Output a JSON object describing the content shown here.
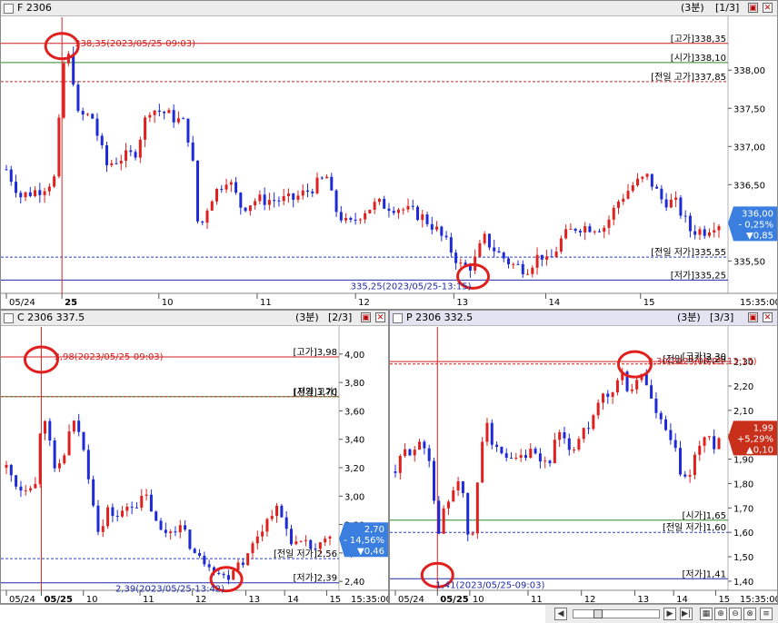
{
  "colors": {
    "up": "#e0201e",
    "down": "#1e2ad8",
    "high": "#d11f1f",
    "open": "#2e8b2e",
    "prevhigh": "#c83030",
    "prevlow": "#2f3fc0",
    "low": "#1e2aa8",
    "badge_up": "#c9301b",
    "badge_down": "#3a7fe0"
  },
  "panels": [
    {
      "id": "f",
      "title": "F 2306",
      "period": "(3분)",
      "index": "[1/3]",
      "chart_data": {
        "type": "candlestick",
        "ylim": [
          335.1,
          338.55
        ],
        "yticks": [
          {
            "v": 338.0,
            "t": "338,00"
          },
          {
            "v": 337.5,
            "t": "337,50"
          },
          {
            "v": 337.0,
            "t": "337,00"
          },
          {
            "v": 336.5,
            "t": "336,50"
          },
          {
            "v": 335.5,
            "t": "335,50"
          }
        ],
        "xticks": [
          {
            "f": 0.0,
            "t": "05/24"
          },
          {
            "f": 0.078,
            "t": "25"
          },
          {
            "f": 0.214,
            "t": "10"
          },
          {
            "f": 0.352,
            "t": "11"
          },
          {
            "f": 0.49,
            "t": "12"
          },
          {
            "f": 0.628,
            "t": "13"
          },
          {
            "f": 0.757,
            "t": "14"
          },
          {
            "f": 0.89,
            "t": "15"
          }
        ],
        "xlast": "15:35:00",
        "open_mark_f": 0.078,
        "anchors": [
          [
            0,
            336.7
          ],
          [
            0.02,
            336.35
          ],
          [
            0.05,
            336.45
          ],
          [
            0.07,
            336.6
          ],
          [
            0.078,
            338.05
          ],
          [
            0.09,
            338.2
          ],
          [
            0.1,
            337.4
          ],
          [
            0.12,
            337.4
          ],
          [
            0.14,
            336.75
          ],
          [
            0.16,
            336.85
          ],
          [
            0.18,
            336.9
          ],
          [
            0.2,
            337.5
          ],
          [
            0.22,
            337.45
          ],
          [
            0.25,
            337.3
          ],
          [
            0.26,
            336.95
          ],
          [
            0.27,
            335.85
          ],
          [
            0.285,
            336.3
          ],
          [
            0.31,
            336.6
          ],
          [
            0.33,
            336.2
          ],
          [
            0.35,
            336.3
          ],
          [
            0.38,
            336.3
          ],
          [
            0.4,
            336.3
          ],
          [
            0.42,
            336.4
          ],
          [
            0.45,
            336.6
          ],
          [
            0.46,
            336.2
          ],
          [
            0.48,
            335.95
          ],
          [
            0.5,
            336.15
          ],
          [
            0.52,
            336.25
          ],
          [
            0.55,
            336.2
          ],
          [
            0.58,
            336.1
          ],
          [
            0.6,
            335.95
          ],
          [
            0.62,
            335.7
          ],
          [
            0.64,
            335.4
          ],
          [
            0.655,
            335.45
          ],
          [
            0.67,
            335.8
          ],
          [
            0.69,
            335.6
          ],
          [
            0.71,
            335.45
          ],
          [
            0.73,
            335.4
          ],
          [
            0.75,
            335.6
          ],
          [
            0.76,
            335.45
          ],
          [
            0.78,
            335.8
          ],
          [
            0.8,
            335.95
          ],
          [
            0.82,
            335.95
          ],
          [
            0.84,
            335.95
          ],
          [
            0.86,
            336.3
          ],
          [
            0.88,
            336.5
          ],
          [
            0.9,
            336.6
          ],
          [
            0.92,
            336.3
          ],
          [
            0.94,
            336.25
          ],
          [
            0.96,
            335.9
          ],
          [
            0.98,
            335.9
          ],
          [
            0.995,
            336.0
          ]
        ],
        "lines": [
          {
            "key": "high",
            "v": 338.35,
            "label": "[고가]338,35",
            "style": "solid"
          },
          {
            "key": "open",
            "v": 338.1,
            "label": "[시가]338,10",
            "style": "solid"
          },
          {
            "key": "prevhigh",
            "v": 337.85,
            "label": "[전일 고가]337,85",
            "style": "dash"
          },
          {
            "key": "prevlow",
            "v": 335.55,
            "label": "[전일 저가]335,55",
            "style": "dash"
          },
          {
            "key": "low",
            "v": 335.25,
            "label": "[저가]335,25",
            "style": "solid"
          }
        ],
        "high_note": {
          "text": "338,35(2023/05/25-09:03)",
          "f": 0.078,
          "v": 338.35
        },
        "low_note": {
          "text": "335,25(2023/05/25-13:15)",
          "f": 0.655,
          "v": 335.25
        },
        "badge": {
          "dir": "down",
          "l1": "336,00",
          "l2": "- 0,25%",
          "l3": "▼0,85",
          "v": 336.0
        }
      }
    },
    {
      "id": "c",
      "title": "C 2306 337.5",
      "period": "(3분)",
      "index": "[2/3]",
      "chart_data": {
        "type": "candlestick",
        "ylim": [
          2.35,
          4.05
        ],
        "yticks": [
          {
            "v": 4.0,
            "t": "4,00"
          },
          {
            "v": 3.8,
            "t": "3,80"
          },
          {
            "v": 3.6,
            "t": "3,60"
          },
          {
            "v": 3.4,
            "t": "3,40"
          },
          {
            "v": 3.2,
            "t": "3,20"
          },
          {
            "v": 3.0,
            "t": "3,00"
          },
          {
            "v": 2.8,
            "t": "2,80"
          },
          {
            "v": 2.6,
            "t": "2,60"
          },
          {
            "v": 2.4,
            "t": "2,40"
          }
        ],
        "xticks": [
          {
            "f": 0.0,
            "t": "05/24"
          },
          {
            "f": 0.108,
            "t": "05/25"
          },
          {
            "f": 0.238,
            "t": "10"
          },
          {
            "f": 0.413,
            "t": "11"
          },
          {
            "f": 0.575,
            "t": "12"
          },
          {
            "f": 0.74,
            "t": "13"
          },
          {
            "f": 0.86,
            "t": "14"
          },
          {
            "f": 0.99,
            "t": "15"
          }
        ],
        "xlast": "15:35:00",
        "open_mark_f": 0.108,
        "anchors": [
          [
            0,
            3.2
          ],
          [
            0.04,
            3.05
          ],
          [
            0.08,
            3.1
          ],
          [
            0.1,
            3.05
          ],
          [
            0.108,
            3.8
          ],
          [
            0.12,
            3.55
          ],
          [
            0.15,
            3.15
          ],
          [
            0.18,
            3.3
          ],
          [
            0.2,
            3.5
          ],
          [
            0.22,
            3.5
          ],
          [
            0.25,
            3.2
          ],
          [
            0.27,
            2.95
          ],
          [
            0.29,
            2.7
          ],
          [
            0.31,
            2.9
          ],
          [
            0.35,
            2.85
          ],
          [
            0.38,
            2.95
          ],
          [
            0.41,
            2.95
          ],
          [
            0.43,
            3.0
          ],
          [
            0.45,
            2.9
          ],
          [
            0.47,
            2.75
          ],
          [
            0.5,
            2.75
          ],
          [
            0.53,
            2.8
          ],
          [
            0.56,
            2.7
          ],
          [
            0.58,
            2.6
          ],
          [
            0.6,
            2.55
          ],
          [
            0.62,
            2.55
          ],
          [
            0.64,
            2.5
          ],
          [
            0.66,
            2.45
          ],
          [
            0.68,
            2.42
          ],
          [
            0.7,
            2.5
          ],
          [
            0.72,
            2.55
          ],
          [
            0.74,
            2.55
          ],
          [
            0.76,
            2.65
          ],
          [
            0.78,
            2.75
          ],
          [
            0.8,
            2.8
          ],
          [
            0.82,
            2.9
          ],
          [
            0.84,
            2.9
          ],
          [
            0.86,
            2.8
          ],
          [
            0.88,
            2.7
          ],
          [
            0.9,
            2.65
          ],
          [
            0.93,
            2.65
          ],
          [
            0.96,
            2.62
          ],
          [
            0.995,
            2.7
          ]
        ],
        "lines": [
          {
            "key": "high",
            "v": 3.98,
            "label": "[고가]3,98",
            "style": "solid"
          },
          {
            "key": "open",
            "v": 3.7,
            "label": "[시가]3,70",
            "style": "solid"
          },
          {
            "key": "prevhigh",
            "v": 3.7,
            "label": "[전일 고가]",
            "style": "dash"
          },
          {
            "key": "prevlow",
            "v": 2.56,
            "label": "[전일 저가]2,56",
            "style": "dash"
          },
          {
            "key": "low",
            "v": 2.39,
            "label": "[저가]2,39",
            "style": "solid"
          }
        ],
        "high_note": {
          "text": "3,98(2023/05/25-09:03)",
          "f": 0.108,
          "v": 3.98
        },
        "low_note": {
          "text": "2,39(2023/05/25-13:42)",
          "f": 0.68,
          "v": 2.39
        },
        "badge": {
          "dir": "down",
          "l1": "2,70",
          "l2": "- 14,56%",
          "l3": "▼0,46",
          "v": 2.7
        }
      }
    },
    {
      "id": "p",
      "title": "P 2306 332.5",
      "period": "(3분)",
      "index": "[3/3]",
      "chart_data": {
        "type": "candlestick",
        "ylim": [
          1.37,
          2.36
        ],
        "yticks": [
          {
            "v": 2.3,
            "t": "2,30"
          },
          {
            "v": 2.2,
            "t": "2,20"
          },
          {
            "v": 2.1,
            "t": "2,10"
          },
          {
            "v": 2.0,
            "t": "2,00"
          },
          {
            "v": 1.9,
            "t": "1,90"
          },
          {
            "v": 1.8,
            "t": "1,80"
          },
          {
            "v": 1.7,
            "t": "1,70"
          },
          {
            "v": 1.6,
            "t": "1,60"
          },
          {
            "v": 1.5,
            "t": "1,50"
          },
          {
            "v": 1.4,
            "t": "1,40"
          }
        ],
        "xticks": [
          {
            "f": 0.0,
            "t": "05/24"
          },
          {
            "f": 0.13,
            "t": "05/25"
          },
          {
            "f": 0.23,
            "t": "10"
          },
          {
            "f": 0.41,
            "t": "11"
          },
          {
            "f": 0.575,
            "t": "12"
          },
          {
            "f": 0.74,
            "t": "13"
          },
          {
            "f": 0.86,
            "t": "14"
          },
          {
            "f": 0.99,
            "t": "15"
          }
        ],
        "xlast": "15:35:00",
        "open_mark_f": 0.13,
        "anchors": [
          [
            0,
            1.85
          ],
          [
            0.03,
            1.93
          ],
          [
            0.06,
            1.95
          ],
          [
            0.09,
            1.95
          ],
          [
            0.11,
            1.9
          ],
          [
            0.13,
            1.55
          ],
          [
            0.15,
            1.7
          ],
          [
            0.17,
            1.75
          ],
          [
            0.2,
            1.85
          ],
          [
            0.22,
            1.6
          ],
          [
            0.24,
            1.58
          ],
          [
            0.26,
            1.9
          ],
          [
            0.28,
            2.1
          ],
          [
            0.3,
            1.95
          ],
          [
            0.33,
            1.9
          ],
          [
            0.36,
            1.88
          ],
          [
            0.39,
            1.9
          ],
          [
            0.42,
            1.92
          ],
          [
            0.45,
            1.88
          ],
          [
            0.48,
            1.9
          ],
          [
            0.5,
            2.0
          ],
          [
            0.53,
            1.95
          ],
          [
            0.56,
            1.95
          ],
          [
            0.58,
            2.05
          ],
          [
            0.6,
            2.0
          ],
          [
            0.62,
            2.1
          ],
          [
            0.64,
            2.15
          ],
          [
            0.66,
            2.15
          ],
          [
            0.68,
            2.2
          ],
          [
            0.7,
            2.25
          ],
          [
            0.72,
            2.18
          ],
          [
            0.74,
            2.2
          ],
          [
            0.76,
            2.25
          ],
          [
            0.78,
            2.2
          ],
          [
            0.8,
            2.1
          ],
          [
            0.82,
            2.05
          ],
          [
            0.84,
            2.0
          ],
          [
            0.86,
            1.95
          ],
          [
            0.88,
            1.85
          ],
          [
            0.9,
            1.8
          ],
          [
            0.92,
            1.9
          ],
          [
            0.94,
            1.95
          ],
          [
            0.96,
            2.0
          ],
          [
            0.98,
            1.95
          ],
          [
            0.995,
            1.99
          ]
        ],
        "lines": [
          {
            "key": "high",
            "v": 2.3,
            "label": "[고가]2,30",
            "style": "solid"
          },
          {
            "key": "high",
            "v": 2.29,
            "label": "[전일 고가]2,29",
            "style": "dash"
          },
          {
            "key": "open",
            "v": 1.65,
            "label": "[시가]1,65",
            "style": "solid"
          },
          {
            "key": "prevlow",
            "v": 1.6,
            "label": "[전일 저가]1,60",
            "style": "dash"
          },
          {
            "key": "low",
            "v": 1.41,
            "label": "[저가]1,41",
            "style": "solid"
          }
        ],
        "high_note": {
          "text": "2,30(2023/05/25-13:15)",
          "f": 0.74,
          "v": 2.3
        },
        "low_note": {
          "text": "1,41(2023/05/25-09:03)",
          "f": 0.13,
          "v": 1.41
        },
        "badge": {
          "dir": "up",
          "l1": "1,99",
          "l2": "+5,29%",
          "l3": "▲0,10",
          "v": 1.99
        }
      }
    }
  ]
}
